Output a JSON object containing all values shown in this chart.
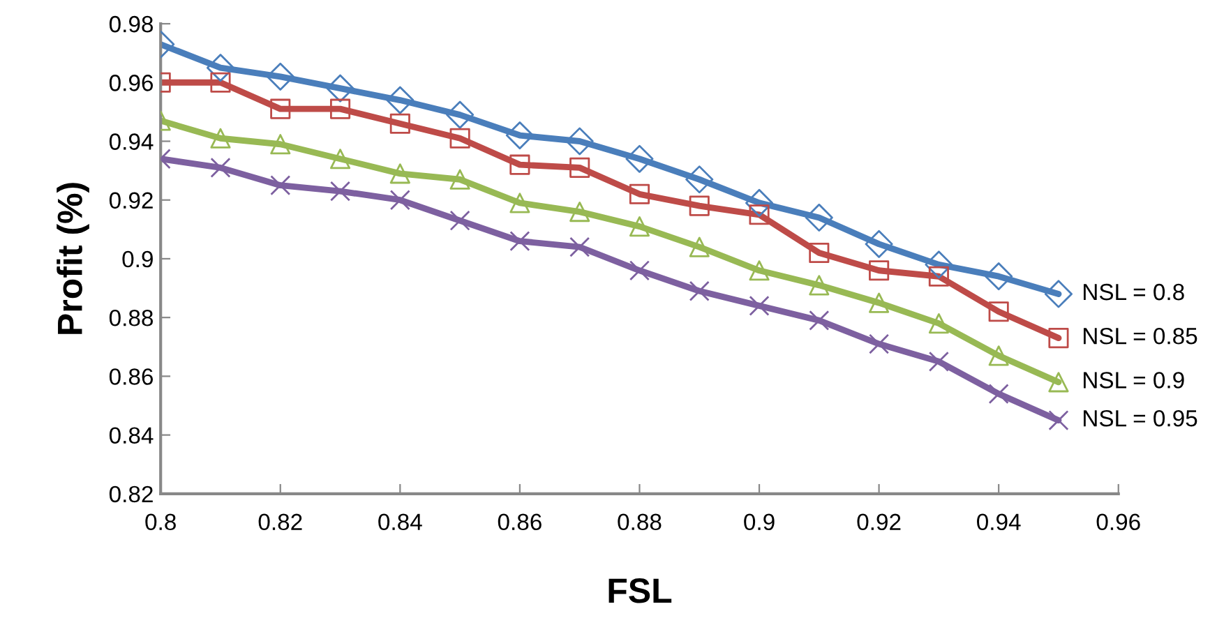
{
  "chart_data": {
    "type": "line",
    "xlabel": "FSL",
    "ylabel": "Profit (%)",
    "x": [
      0.8,
      0.81,
      0.82,
      0.83,
      0.84,
      0.85,
      0.86,
      0.87,
      0.88,
      0.89,
      0.9,
      0.91,
      0.92,
      0.93,
      0.94,
      0.95
    ],
    "series": [
      {
        "name": "NSL = 0.8",
        "color": "#4a7ebb",
        "marker": "diamond",
        "values": [
          0.973,
          0.965,
          0.962,
          0.958,
          0.954,
          0.949,
          0.942,
          0.94,
          0.934,
          0.927,
          0.919,
          0.914,
          0.905,
          0.898,
          0.894,
          0.888
        ]
      },
      {
        "name": "NSL = 0.85",
        "color": "#be4b48",
        "marker": "square",
        "values": [
          0.96,
          0.96,
          0.951,
          0.951,
          0.946,
          0.941,
          0.932,
          0.931,
          0.922,
          0.918,
          0.915,
          0.902,
          0.896,
          0.894,
          0.882,
          0.873
        ]
      },
      {
        "name": "NSL = 0.9",
        "color": "#98b954",
        "marker": "triangle",
        "values": [
          0.947,
          0.941,
          0.939,
          0.934,
          0.929,
          0.927,
          0.919,
          0.916,
          0.911,
          0.904,
          0.896,
          0.891,
          0.885,
          0.878,
          0.867,
          0.858
        ]
      },
      {
        "name": "NSL = 0.95",
        "color": "#7d60a0",
        "marker": "cross",
        "values": [
          0.934,
          0.931,
          0.925,
          0.923,
          0.92,
          0.913,
          0.906,
          0.904,
          0.896,
          0.889,
          0.884,
          0.879,
          0.871,
          0.865,
          0.854,
          0.845
        ]
      }
    ],
    "xlim": [
      0.8,
      0.96
    ],
    "xticks": [
      0.8,
      0.82,
      0.84,
      0.86,
      0.88,
      0.9,
      0.92,
      0.94,
      0.96
    ],
    "ylim": [
      0.82,
      0.98
    ],
    "yticks": [
      0.82,
      0.84,
      0.86,
      0.88,
      0.9,
      0.92,
      0.94,
      0.96,
      0.98
    ],
    "grid": false,
    "legend": false,
    "line_style": "solid"
  }
}
